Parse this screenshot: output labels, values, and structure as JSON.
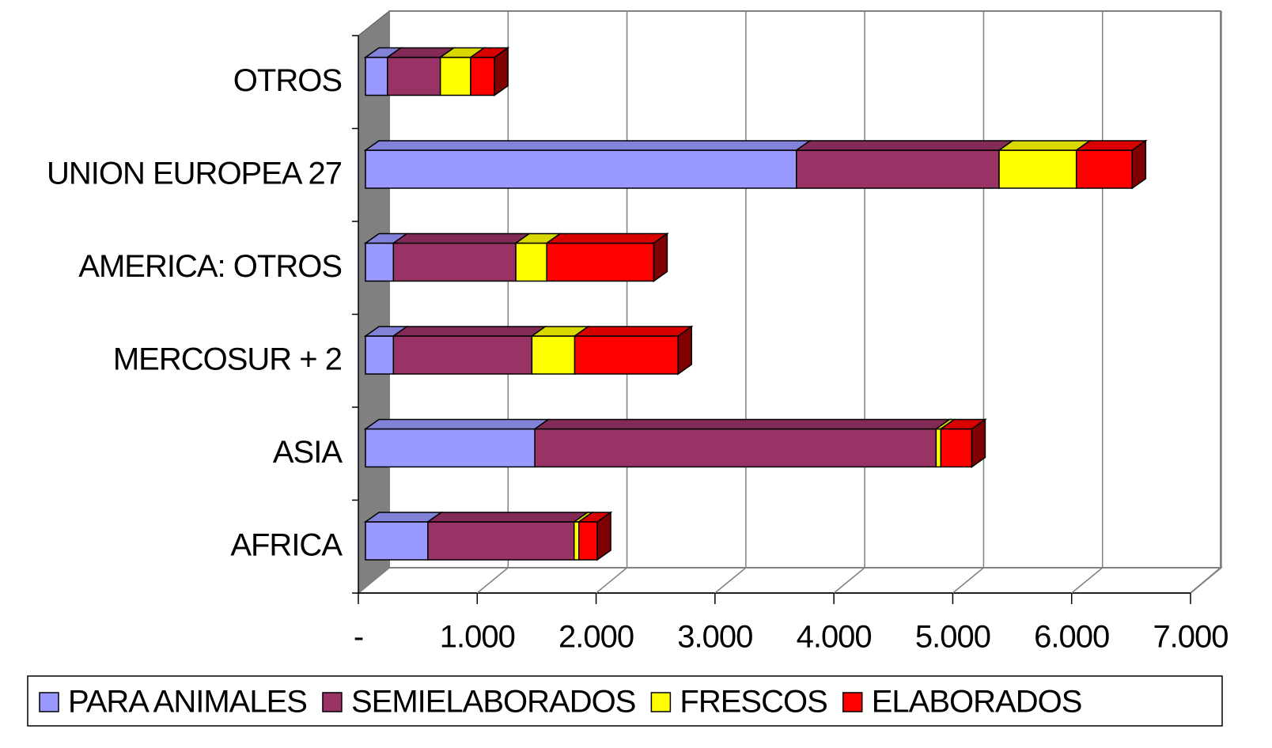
{
  "chart_data": {
    "type": "bar3d_stacked_horizontal",
    "categories": [
      "AFRICA",
      "ASIA",
      "MERCOSUR + 2",
      "AMERICA: OTROS",
      "UNION EUROPEA 27",
      "OTROS"
    ],
    "series": [
      {
        "name": "PARA ANIMALES",
        "color": "#9999ff",
        "values": [
          525,
          1425,
          235,
          235,
          3625,
          185
        ]
      },
      {
        "name": "SEMIELABORADOS",
        "color": "#993366",
        "values": [
          1230,
          3375,
          1165,
          1030,
          1705,
          445
        ]
      },
      {
        "name": "FRESCOS",
        "color": "#ffff00",
        "values": [
          40,
          40,
          360,
          260,
          650,
          255
        ]
      },
      {
        "name": "ELABORADOS",
        "color": "#ff0000",
        "values": [
          155,
          260,
          870,
          900,
          470,
          200
        ]
      }
    ],
    "xlim": [
      0,
      7000
    ],
    "xticks": [
      {
        "value": 0,
        "label": "-"
      },
      {
        "value": 1000,
        "label": "1.000"
      },
      {
        "value": 2000,
        "label": "2.000"
      },
      {
        "value": 3000,
        "label": "3.000"
      },
      {
        "value": 4000,
        "label": "4.000"
      },
      {
        "value": 5000,
        "label": "5.000"
      },
      {
        "value": 6000,
        "label": "6.000"
      },
      {
        "value": 7000,
        "label": "7.000"
      }
    ],
    "grid": true,
    "legend": "bottom"
  }
}
